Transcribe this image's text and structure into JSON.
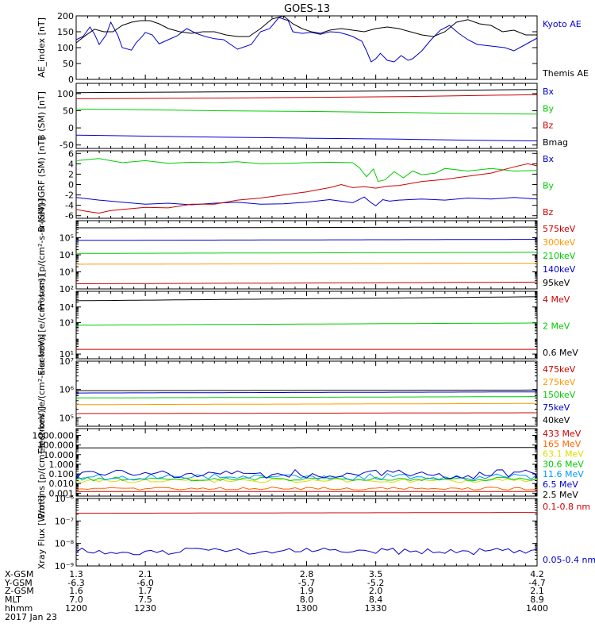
{
  "title": "GOES-13",
  "chart_data": [
    {
      "type": "line",
      "ylabel": "AE_index [nT]",
      "ylim": [
        0,
        200
      ],
      "yscale": "linear",
      "y_ticks": [
        0,
        50,
        100,
        150,
        200
      ],
      "y_tick_labels": [
        "0",
        "50",
        "100",
        "150",
        "200"
      ],
      "series": [
        {
          "name": "Kyoto AE",
          "color": "#0000cc",
          "kind": "points",
          "x": [
            1200,
            1203,
            1206,
            1208,
            1210,
            1213,
            1215,
            1218,
            1220,
            1224,
            1226,
            1229,
            1230,
            1233,
            1236,
            1240,
            1244,
            1248,
            1252,
            1256,
            1260,
            1264,
            1270,
            1276,
            1280,
            1284,
            1288,
            1292,
            1294,
            1298,
            1302,
            1306,
            1310,
            1314,
            1318,
            1320,
            1324,
            1326,
            1328,
            1330,
            1332,
            1335,
            1338,
            1341,
            1344,
            1346,
            1350,
            1354,
            1358,
            1362,
            1366,
            1370,
            1374,
            1380,
            1386,
            1390,
            1395,
            1400
          ],
          "y": [
            125,
            135,
            165,
            142,
            110,
            140,
            180,
            140,
            100,
            92,
            115,
            138,
            148,
            140,
            112,
            125,
            138,
            160,
            145,
            135,
            128,
            125,
            95,
            110,
            150,
            160,
            195,
            185,
            150,
            145,
            148,
            142,
            150,
            148,
            140,
            135,
            120,
            90,
            55,
            65,
            82,
            60,
            55,
            75,
            60,
            65,
            90,
            125,
            155,
            170,
            145,
            125,
            110,
            105,
            100,
            90,
            110,
            130
          ]
        },
        {
          "name": "Themis AE",
          "color": "#000000",
          "kind": "points",
          "x": [
            1200,
            1204,
            1208,
            1212,
            1216,
            1220,
            1224,
            1228,
            1232,
            1236,
            1240,
            1245,
            1250,
            1255,
            1260,
            1265,
            1270,
            1275,
            1280,
            1285,
            1290,
            1294,
            1298,
            1302,
            1306,
            1310,
            1315,
            1320,
            1325,
            1330,
            1335,
            1340,
            1345,
            1350,
            1355,
            1360,
            1365,
            1370,
            1375,
            1380,
            1385,
            1390,
            1395,
            1400
          ],
          "y": [
            115,
            138,
            158,
            150,
            150,
            170,
            180,
            185,
            185,
            175,
            160,
            150,
            145,
            150,
            150,
            140,
            135,
            135,
            160,
            190,
            200,
            175,
            160,
            150,
            145,
            155,
            160,
            155,
            150,
            160,
            165,
            160,
            150,
            140,
            135,
            150,
            180,
            188,
            175,
            170,
            150,
            155,
            140,
            140
          ]
        }
      ]
    },
    {
      "type": "line",
      "ylabel": "B (SM) [nT]",
      "ylim": [
        -60,
        130
      ],
      "yscale": "linear",
      "y_ticks": [
        -50,
        0,
        50,
        100
      ],
      "y_tick_labels": [
        "-50",
        "0",
        "50",
        "100"
      ],
      "series": [
        {
          "name": "Bx",
          "color": "#0000cc",
          "kind": "points",
          "x": [
            1200,
            1230,
            1260,
            1300,
            1340,
            1370,
            1400
          ],
          "y": [
            -21,
            -24,
            -27,
            -30,
            -33,
            -36,
            -38
          ]
        },
        {
          "name": "By",
          "color": "#00cc00",
          "kind": "points",
          "x": [
            1200,
            1230,
            1260,
            1300,
            1340,
            1370,
            1400
          ],
          "y": [
            55,
            53,
            50,
            48,
            45,
            42,
            40
          ]
        },
        {
          "name": "Bz",
          "color": "#cc0000",
          "kind": "points",
          "x": [
            1200,
            1230,
            1260,
            1300,
            1340,
            1370,
            1400
          ],
          "y": [
            85,
            86,
            87,
            89,
            91,
            94,
            97
          ]
        },
        {
          "name": "Bmag",
          "color": "#000000",
          "kind": "points",
          "x": [
            1200,
            1230,
            1260,
            1300,
            1340,
            1370,
            1400
          ],
          "y": [
            103,
            104,
            105,
            106,
            108,
            110,
            112
          ]
        }
      ]
    },
    {
      "type": "line",
      "ylabel": "B (SM)-IGRF (SM) [nT]",
      "ylim": [
        -6.5,
        6.5
      ],
      "yscale": "linear",
      "y_ticks": [
        -6,
        -4,
        -2,
        0,
        2,
        4,
        6
      ],
      "y_tick_labels": [
        "-6",
        "-4",
        "-2",
        "0",
        "2",
        "4",
        "6"
      ],
      "series": [
        {
          "name": "Bx",
          "color": "#0000cc",
          "kind": "points",
          "x": [
            1200,
            1210,
            1220,
            1230,
            1240,
            1250,
            1260,
            1270,
            1280,
            1290,
            1300,
            1310,
            1320,
            1325,
            1328,
            1330,
            1333,
            1336,
            1340,
            1350,
            1360,
            1370,
            1380,
            1390,
            1400
          ],
          "y": [
            -2.5,
            -3.0,
            -3.4,
            -3.8,
            -3.6,
            -3.9,
            -3.6,
            -3.4,
            -3.8,
            -3.7,
            -3.4,
            -2.9,
            -3.5,
            -2.4,
            -3.5,
            -4.1,
            -2.9,
            -3.2,
            -3.0,
            -2.8,
            -3.0,
            -2.6,
            -2.8,
            -2.5,
            -2.8
          ]
        },
        {
          "name": "By",
          "color": "#00cc00",
          "kind": "points",
          "x": [
            1200,
            1210,
            1220,
            1230,
            1240,
            1250,
            1260,
            1270,
            1280,
            1290,
            1300,
            1310,
            1320,
            1323,
            1326,
            1329,
            1331,
            1334,
            1338,
            1342,
            1346,
            1350,
            1356,
            1360,
            1370,
            1380,
            1390,
            1400
          ],
          "y": [
            4.6,
            5.0,
            4.2,
            4.6,
            4.1,
            4.3,
            4.2,
            4.4,
            4.0,
            4.1,
            4.2,
            4.3,
            4.2,
            3.2,
            1.5,
            3.0,
            0.6,
            0.9,
            2.5,
            1.3,
            2.6,
            1.9,
            2.2,
            3.1,
            2.6,
            3.1,
            2.6,
            2.7
          ]
        },
        {
          "name": "Bz",
          "color": "#cc0000",
          "kind": "points",
          "x": [
            1200,
            1205,
            1210,
            1215,
            1220,
            1230,
            1240,
            1250,
            1260,
            1270,
            1280,
            1290,
            1300,
            1305,
            1310,
            1315,
            1320,
            1325,
            1330,
            1335,
            1340,
            1350,
            1360,
            1370,
            1380,
            1390,
            1396,
            1400
          ],
          "y": [
            -4.8,
            -5.2,
            -5.5,
            -5.0,
            -4.8,
            -4.4,
            -4.5,
            -3.8,
            -3.8,
            -3.0,
            -2.6,
            -2.0,
            -1.4,
            -1.0,
            -0.6,
            0.0,
            -0.6,
            -0.4,
            -0.7,
            -0.3,
            -0.2,
            0.6,
            1.0,
            1.6,
            2.2,
            3.4,
            4.0,
            3.6
          ]
        }
      ]
    },
    {
      "type": "line",
      "ylabel": "Protons [p/(cm²-s-sr-keV)]",
      "ylim": [
        100,
        1000000
      ],
      "yscale": "log",
      "y_ticks": [
        100,
        1000,
        10000,
        100000
      ],
      "y_tick_labels": [
        "10²",
        "10³",
        "10⁴",
        "10⁵"
      ],
      "series": [
        {
          "name": "575keV",
          "color": "#cc0000",
          "kind": "flat",
          "value": 200,
          "end": 250
        },
        {
          "name": "300keV",
          "color": "#ff9900",
          "kind": "flat",
          "value": 2800,
          "end": 3200
        },
        {
          "name": "210keV",
          "color": "#00cc00",
          "kind": "flat",
          "value": 12000,
          "end": 14000
        },
        {
          "name": "140keV",
          "color": "#0000cc",
          "kind": "flat",
          "value": 70000,
          "end": 80000
        },
        {
          "name": "95keV",
          "color": "#000000",
          "kind": "flat",
          "value": 380000,
          "end": 420000
        }
      ]
    },
    {
      "type": "line",
      "ylabel": "Electrons [e/(cm²-s-sr)]",
      "ylim": [
        5,
        100000
      ],
      "yscale": "log",
      "y_ticks": [
        10,
        1000,
        10000
      ],
      "y_tick_labels": [
        "10¹",
        "10³",
        "10⁴"
      ],
      "series": [
        {
          "name": "4 MeV",
          "color": "#cc0000",
          "kind": "flat",
          "value": 20,
          "end": 20
        },
        {
          "name": "2 MeV",
          "color": "#00cc00",
          "kind": "flat",
          "value": 700,
          "end": 950
        },
        {
          "name": "0.6 MeV",
          "color": "#000000",
          "kind": "flat",
          "value": 25000,
          "end": 45000
        }
      ]
    },
    {
      "type": "line",
      "ylabel": "Electrons [e/(cm²-s-sr-keV)]",
      "ylim": [
        50000,
        10000000
      ],
      "yscale": "log",
      "y_ticks": [
        100000,
        1000000,
        10000000
      ],
      "y_tick_labels": [
        "10⁵",
        "10⁶",
        "10⁷"
      ],
      "series": [
        {
          "name": "475keV",
          "color": "#cc0000",
          "kind": "flat",
          "value": 140000,
          "end": 150000
        },
        {
          "name": "275keV",
          "color": "#ff9900",
          "kind": "flat",
          "value": 290000,
          "end": 320000
        },
        {
          "name": "150keV",
          "color": "#00cc00",
          "kind": "flat",
          "value": 500000,
          "end": 560000
        },
        {
          "name": "75keV",
          "color": "#0000cc",
          "kind": "flat",
          "value": 750000,
          "end": 820000
        },
        {
          "name": "40keV",
          "color": "#000000",
          "kind": "flat",
          "value": 900000,
          "end": 950000
        }
      ]
    },
    {
      "type": "line",
      "ylabel": "Protons [p/(cm²-s-sr-keV)]",
      "ylim": [
        0.0005,
        5000
      ],
      "yscale": "log",
      "y_ticks": [
        0.001,
        0.01,
        0.1,
        1,
        10,
        100,
        1000
      ],
      "y_tick_labels": [
        "0.001",
        "0.010",
        "0.100",
        "1.000",
        "10.000",
        "100.000",
        "1000.000"
      ],
      "series": [
        {
          "name": "433 MeV",
          "color": "#cc0000",
          "kind": "flat",
          "value": 0.0015,
          "end": 0.0015
        },
        {
          "name": "165 MeV",
          "color": "#ff6600",
          "kind": "noisy",
          "value": 0.003,
          "amp": 0.15,
          "seed": 3
        },
        {
          "name": "63.1 MeV",
          "color": "#dddd00",
          "kind": "noisy",
          "value": 0.02,
          "amp": 0.2,
          "seed": 5
        },
        {
          "name": "30.6 MeV",
          "color": "#00cc00",
          "kind": "noisy",
          "value": 0.03,
          "amp": 0.2,
          "seed": 7
        },
        {
          "name": "11.6 MeV",
          "color": "#0099ff",
          "kind": "noisy",
          "value": 0.05,
          "amp": 0.35,
          "seed": 11
        },
        {
          "name": "6.5 MeV",
          "color": "#0000cc",
          "kind": "noisy",
          "value": 0.1,
          "amp": 0.5,
          "seed": 13
        },
        {
          "name": "2.5 MeV",
          "color": "#000000",
          "kind": "flat",
          "value": 50,
          "end": 55
        }
      ]
    },
    {
      "type": "line",
      "ylabel": "Xray Flux [W/m²]",
      "ylim": [
        1e-09,
        1e-06
      ],
      "yscale": "log",
      "y_ticks": [
        1e-09,
        1e-08,
        1e-07,
        1e-06
      ],
      "y_tick_labels": [
        "10⁻⁹",
        "10⁻⁸",
        "10⁻⁷",
        "10⁻⁶"
      ],
      "series": [
        {
          "name": "0.1-0.8 nm",
          "color": "#cc0000",
          "kind": "flat",
          "value": 2.2e-07,
          "end": 2.4e-07
        },
        {
          "name": "0.05-0.4 nm",
          "color": "#0000cc",
          "kind": "noisy",
          "value": 4.5e-09,
          "amp": 0.15,
          "seed": 17
        }
      ]
    }
  ],
  "x_axis": {
    "xlim": [
      1200,
      1400
    ],
    "ticks": [
      1200,
      1230,
      1300,
      1330,
      1400
    ],
    "rows": [
      {
        "label": "X-GSM",
        "values": [
          "1.3",
          "2.1",
          "2.8",
          "3.5",
          "4.2"
        ]
      },
      {
        "label": "Y-GSM",
        "values": [
          "-6.3",
          "-6.0",
          "-5.7",
          "-5.2",
          "-4.7"
        ]
      },
      {
        "label": "Z-GSM",
        "values": [
          "1.6",
          "1.7",
          "1.9",
          "2.0",
          "2.1"
        ]
      },
      {
        "label": "MLT",
        "values": [
          "7.0",
          "7.5",
          "8.0",
          "8.4",
          "8.9"
        ]
      },
      {
        "label": "hhmm",
        "values": [
          "1200",
          "1230",
          "1300",
          "1330",
          "1400"
        ]
      }
    ],
    "date": "2017 Jan 23"
  }
}
